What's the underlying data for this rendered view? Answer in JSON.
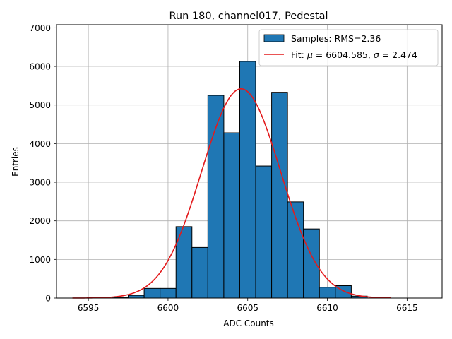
{
  "chart_data": {
    "type": "bar",
    "title": "Run 180, channel017, Pedestal",
    "xlabel": "ADC Counts",
    "ylabel": "Entries",
    "xlim": [
      6593,
      6617.2
    ],
    "ylim": [
      0,
      7080
    ],
    "grid": true,
    "legend_position": "top-right",
    "x_ticks": [
      6595,
      6600,
      6605,
      6610,
      6615
    ],
    "y_ticks": [
      0,
      1000,
      2000,
      3000,
      4000,
      5000,
      6000,
      7000
    ],
    "bin_width": 1,
    "bins": [
      {
        "x": 6597,
        "value": 20
      },
      {
        "x": 6598,
        "value": 70
      },
      {
        "x": 6599,
        "value": 250
      },
      {
        "x": 6600,
        "value": 250
      },
      {
        "x": 6601,
        "value": 1850
      },
      {
        "x": 6602,
        "value": 1310
      },
      {
        "x": 6603,
        "value": 5250
      },
      {
        "x": 6604,
        "value": 4280
      },
      {
        "x": 6605,
        "value": 6130
      },
      {
        "x": 6606,
        "value": 3420
      },
      {
        "x": 6607,
        "value": 5330
      },
      {
        "x": 6608,
        "value": 2490
      },
      {
        "x": 6609,
        "value": 1790
      },
      {
        "x": 6610,
        "value": 280
      },
      {
        "x": 6611,
        "value": 320
      },
      {
        "x": 6612,
        "value": 50
      }
    ],
    "fit": {
      "mu": 6604.585,
      "sigma": 2.474,
      "amplitude": 5420,
      "x_range": [
        6594,
        6614
      ]
    },
    "series": [
      {
        "name": "Samples: RMS=2.36",
        "kind": "histogram",
        "color": "#1f77b4",
        "edge": "#000000"
      },
      {
        "name_prefix": "Fit: ",
        "mu_symbol": "μ",
        "mu_text": " = 6604.585, ",
        "sigma_symbol": "σ",
        "sigma_text": " = 2.474",
        "kind": "line",
        "color": "#e31a1c"
      }
    ]
  }
}
